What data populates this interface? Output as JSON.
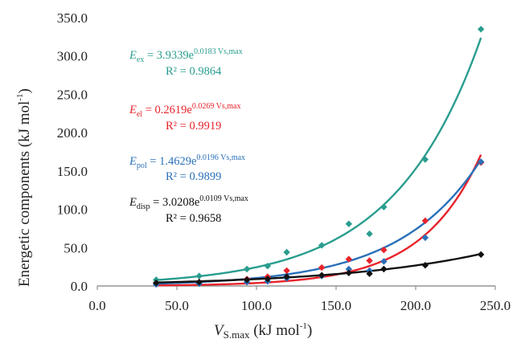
{
  "chart_data": {
    "type": "scatter",
    "xlabel_main": "V",
    "xlabel_sub": "S.max",
    "xlabel_rest": " (kJ mol",
    "xlabel_sup": "-1",
    "xlabel_end": ")",
    "ylabel_main": "Energetic components  (kJ mol",
    "ylabel_sup": "-1",
    "ylabel_end": ")",
    "xlim": [
      0,
      250
    ],
    "ylim": [
      0,
      350
    ],
    "xticks": [
      "0.0",
      "50.0",
      "100.0",
      "150.0",
      "200.0",
      "250.0"
    ],
    "yticks": [
      "0.0",
      "50.0",
      "100.0",
      "150.0",
      "200.0",
      "250.0",
      "300.0",
      "350.0"
    ],
    "series": [
      {
        "color": "#2a9d8f",
        "fit": {
          "a": 3.9339,
          "b": 0.0183
        },
        "eq_sym": "E",
        "eq_sub": "ex",
        "eq_mid": " = 3.9339e",
        "eq_sup": "0.0183 Vs,max",
        "r2": "R² = 0.9864",
        "points": [
          [
            37,
            8
          ],
          [
            64,
            13
          ],
          [
            94,
            22
          ],
          [
            107,
            26
          ],
          [
            119,
            44
          ],
          [
            141,
            53
          ],
          [
            158,
            81
          ],
          [
            171,
            68
          ],
          [
            180,
            103
          ],
          [
            206,
            165
          ],
          [
            241,
            335
          ]
        ]
      },
      {
        "color": "#e8232b",
        "fit": {
          "a": 0.2619,
          "b": 0.0269
        },
        "eq_sym": "E",
        "eq_sub": "el",
        "eq_mid": " = 0.2619e",
        "eq_sup": "0.0269 Vs,max",
        "r2": "R² = 0.9919",
        "points": [
          [
            37,
            3
          ],
          [
            64,
            5
          ],
          [
            94,
            9
          ],
          [
            107,
            12
          ],
          [
            119,
            20
          ],
          [
            141,
            24
          ],
          [
            158,
            35
          ],
          [
            171,
            33
          ],
          [
            180,
            47
          ],
          [
            206,
            85
          ],
          [
            241,
            161
          ]
        ]
      },
      {
        "color": "#2a70b9",
        "fit": {
          "a": 1.4629,
          "b": 0.0196
        },
        "eq_sym": "E",
        "eq_sub": "pol",
        "eq_mid": " = 1.4629e",
        "eq_sup": "0.0196 Vs,max",
        "r2": "R² = 0.9899",
        "points": [
          [
            37,
            2
          ],
          [
            64,
            3
          ],
          [
            94,
            5
          ],
          [
            107,
            6
          ],
          [
            119,
            10
          ],
          [
            141,
            13
          ],
          [
            158,
            22
          ],
          [
            171,
            20
          ],
          [
            180,
            32
          ],
          [
            206,
            63
          ],
          [
            241,
            162
          ]
        ]
      },
      {
        "color": "#111111",
        "fit": {
          "a": 3.0208,
          "b": 0.0109
        },
        "eq_sym": "E",
        "eq_sub": "disp",
        "eq_mid": " = 3.0208e",
        "eq_sup": "0.0109 Vs,max",
        "r2": "R² = 0.9658",
        "points": [
          [
            37,
            4
          ],
          [
            64,
            5
          ],
          [
            94,
            8
          ],
          [
            107,
            9
          ],
          [
            119,
            12
          ],
          [
            141,
            14
          ],
          [
            158,
            17
          ],
          [
            171,
            16
          ],
          [
            180,
            22
          ],
          [
            206,
            27
          ],
          [
            241,
            41
          ]
        ]
      }
    ]
  }
}
